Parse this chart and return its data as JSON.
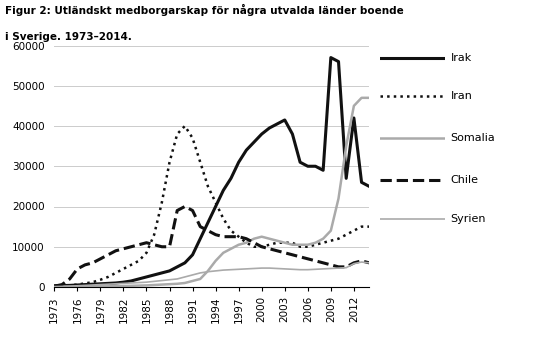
{
  "title_line1": "Figur 2: Utländskt medborgarskap för några utvalda länder boende",
  "title_line2": "i Sverige. 1973–2014.",
  "years": [
    1973,
    1974,
    1975,
    1976,
    1977,
    1978,
    1979,
    1980,
    1981,
    1982,
    1983,
    1984,
    1985,
    1986,
    1987,
    1988,
    1989,
    1990,
    1991,
    1992,
    1993,
    1994,
    1995,
    1996,
    1997,
    1998,
    1999,
    2000,
    2001,
    2002,
    2003,
    2004,
    2005,
    2006,
    2007,
    2008,
    2009,
    2010,
    2011,
    2012,
    2013,
    2014
  ],
  "irak": [
    300,
    350,
    400,
    500,
    600,
    700,
    800,
    900,
    1000,
    1200,
    1500,
    2000,
    2500,
    3000,
    3500,
    4000,
    5000,
    6000,
    8000,
    12000,
    16000,
    20000,
    24000,
    27000,
    31000,
    34000,
    36000,
    38000,
    39500,
    40500,
    41500,
    38000,
    31000,
    30000,
    30000,
    29000,
    57000,
    56000,
    27000,
    42000,
    26000,
    25000
  ],
  "iran": [
    200,
    300,
    400,
    600,
    900,
    1200,
    1800,
    2500,
    3500,
    4500,
    5500,
    6500,
    8500,
    13000,
    21000,
    31000,
    38000,
    40000,
    37000,
    31000,
    25000,
    21000,
    17000,
    14000,
    12500,
    11000,
    10000,
    10000,
    10500,
    11000,
    11000,
    11000,
    10000,
    10000,
    10500,
    11000,
    11500,
    12000,
    13000,
    14000,
    15000,
    15000
  ],
  "somalia": [
    50,
    60,
    70,
    80,
    100,
    120,
    150,
    180,
    200,
    250,
    300,
    350,
    400,
    500,
    600,
    700,
    800,
    1000,
    1500,
    2000,
    4000,
    6500,
    8500,
    9500,
    10500,
    11000,
    12000,
    12500,
    12000,
    11500,
    11000,
    10500,
    10500,
    10500,
    11000,
    12000,
    14000,
    22000,
    35000,
    45000,
    47000,
    47000
  ],
  "chile": [
    200,
    600,
    2000,
    4500,
    5500,
    6000,
    7000,
    8000,
    9000,
    9500,
    10000,
    10500,
    11000,
    10500,
    10000,
    10000,
    19000,
    20000,
    19000,
    15000,
    14000,
    13000,
    12500,
    12500,
    12500,
    12000,
    11000,
    10000,
    9500,
    9000,
    8500,
    8000,
    7500,
    7000,
    6500,
    6000,
    5500,
    5000,
    5000,
    6000,
    6500,
    6000
  ],
  "syrien": [
    100,
    150,
    200,
    300,
    400,
    500,
    600,
    700,
    800,
    900,
    1000,
    1100,
    1200,
    1400,
    1600,
    1800,
    2000,
    2500,
    3000,
    3500,
    3800,
    4000,
    4200,
    4300,
    4400,
    4500,
    4600,
    4700,
    4700,
    4600,
    4500,
    4400,
    4300,
    4300,
    4400,
    4500,
    4600,
    4700,
    4800,
    5800,
    6200,
    6000
  ],
  "ylim": [
    0,
    60000
  ],
  "yticks": [
    0,
    10000,
    20000,
    30000,
    40000,
    50000,
    60000
  ],
  "xticks": [
    1973,
    1976,
    1979,
    1982,
    1985,
    1988,
    1991,
    1994,
    1997,
    2000,
    2003,
    2006,
    2009,
    2012
  ],
  "colors": {
    "irak": "#111111",
    "iran": "#111111",
    "somalia": "#aaaaaa",
    "chile": "#111111",
    "syrien": "#aaaaaa"
  },
  "linestyles": {
    "irak": "solid",
    "iran": "dotted",
    "somalia": "solid",
    "chile": "dashed",
    "syrien": "solid"
  },
  "linewidths": {
    "irak": 2.2,
    "iran": 1.8,
    "somalia": 1.8,
    "chile": 2.2,
    "syrien": 1.2
  },
  "legend_labels": [
    "Irak",
    "Iran",
    "Somalia",
    "Chile",
    "Syrien"
  ],
  "legend_colors": [
    "#111111",
    "#111111",
    "#aaaaaa",
    "#111111",
    "#aaaaaa"
  ],
  "legend_linestyles": [
    "solid",
    "dotted",
    "solid",
    "dashed",
    "solid"
  ],
  "legend_linewidths": [
    2.2,
    1.8,
    1.8,
    2.2,
    1.2
  ]
}
